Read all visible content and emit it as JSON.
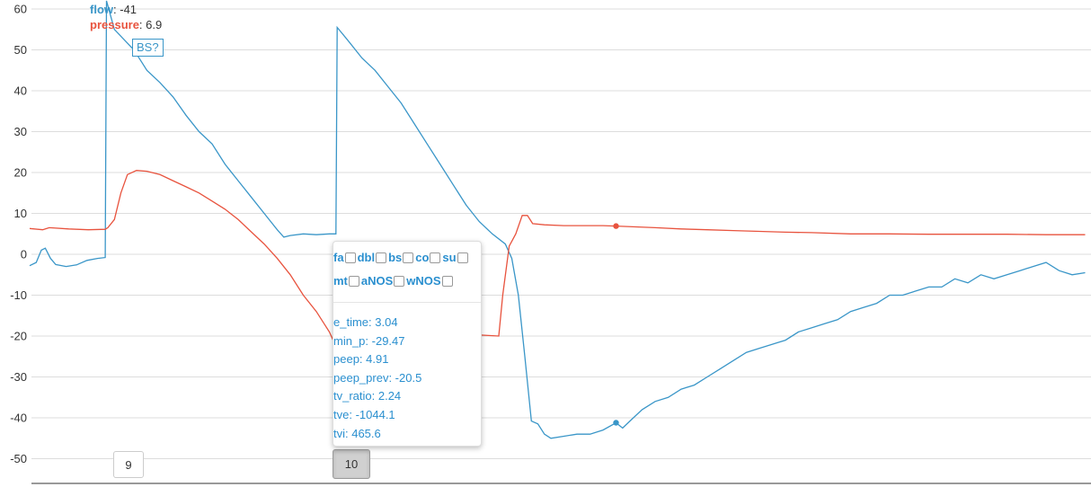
{
  "chart_data": {
    "type": "line",
    "ylim": [
      -55,
      60
    ],
    "yticks": [
      60,
      50,
      40,
      30,
      20,
      10,
      0,
      -10,
      -20,
      -30,
      -40,
      -50
    ],
    "grid": true,
    "series": [
      {
        "name": "flow",
        "color": "#3a96c8",
        "points": [
          [
            0.0,
            -2.8
          ],
          [
            0.05,
            -2
          ],
          [
            0.09,
            1
          ],
          [
            0.12,
            1.5
          ],
          [
            0.16,
            -1
          ],
          [
            0.2,
            -2.5
          ],
          [
            0.28,
            -3
          ],
          [
            0.36,
            -2.6
          ],
          [
            0.44,
            -1.5
          ],
          [
            0.52,
            -1
          ],
          [
            0.58,
            -0.8
          ],
          [
            0.59,
            62
          ],
          [
            0.65,
            55
          ],
          [
            0.74,
            52
          ],
          [
            0.8,
            50
          ],
          [
            0.86,
            47
          ],
          [
            0.9,
            45
          ],
          [
            1.0,
            42
          ],
          [
            1.1,
            38.5
          ],
          [
            1.2,
            34
          ],
          [
            1.3,
            30
          ],
          [
            1.4,
            27
          ],
          [
            1.5,
            22
          ],
          [
            1.6,
            18
          ],
          [
            1.7,
            14
          ],
          [
            1.8,
            10
          ],
          [
            1.9,
            6
          ],
          [
            1.95,
            4.2
          ],
          [
            2.0,
            4.6
          ],
          [
            2.1,
            5
          ],
          [
            2.2,
            4.8
          ],
          [
            2.3,
            5
          ],
          [
            2.35,
            5
          ],
          [
            2.36,
            55.5
          ],
          [
            2.45,
            52
          ],
          [
            2.55,
            48
          ],
          [
            2.65,
            45
          ],
          [
            2.75,
            41
          ],
          [
            2.85,
            37
          ],
          [
            2.95,
            32
          ],
          [
            3.05,
            27
          ],
          [
            3.15,
            22
          ],
          [
            3.25,
            17
          ],
          [
            3.35,
            12
          ],
          [
            3.45,
            8
          ],
          [
            3.55,
            5
          ],
          [
            3.65,
            2.5
          ],
          [
            3.7,
            -1
          ],
          [
            3.75,
            -10
          ],
          [
            3.8,
            -25
          ],
          [
            3.85,
            -40.8
          ],
          [
            3.9,
            -41.5
          ],
          [
            3.95,
            -44
          ],
          [
            4.0,
            -45
          ],
          [
            4.1,
            -44.5
          ],
          [
            4.2,
            -44
          ],
          [
            4.3,
            -44
          ],
          [
            4.4,
            -43
          ],
          [
            4.5,
            -41.2
          ],
          [
            4.55,
            -42.5
          ],
          [
            4.6,
            -41
          ],
          [
            4.7,
            -38
          ],
          [
            4.8,
            -36
          ],
          [
            4.9,
            -35
          ],
          [
            5.0,
            -33
          ],
          [
            5.1,
            -32
          ],
          [
            5.2,
            -30
          ],
          [
            5.3,
            -28
          ],
          [
            5.4,
            -26
          ],
          [
            5.5,
            -24
          ],
          [
            5.6,
            -23
          ],
          [
            5.7,
            -22
          ],
          [
            5.8,
            -21
          ],
          [
            5.9,
            -19
          ],
          [
            6.0,
            -18
          ],
          [
            6.1,
            -17
          ],
          [
            6.2,
            -16
          ],
          [
            6.3,
            -14
          ],
          [
            6.4,
            -13
          ],
          [
            6.5,
            -12
          ],
          [
            6.6,
            -10
          ],
          [
            6.7,
            -10
          ],
          [
            6.8,
            -9
          ],
          [
            6.9,
            -8
          ],
          [
            7.0,
            -8
          ],
          [
            7.1,
            -6
          ],
          [
            7.2,
            -7
          ],
          [
            7.3,
            -5
          ],
          [
            7.4,
            -6
          ],
          [
            7.5,
            -5
          ],
          [
            7.6,
            -4
          ],
          [
            7.7,
            -3
          ],
          [
            7.8,
            -2
          ],
          [
            7.9,
            -4
          ],
          [
            8.0,
            -5
          ],
          [
            8.1,
            -4.5
          ]
        ],
        "highlight": [
          4.5,
          -41.2
        ]
      },
      {
        "name": "pressure",
        "color": "#e8533e",
        "points": [
          [
            0.0,
            6.3
          ],
          [
            0.1,
            6
          ],
          [
            0.15,
            6.5
          ],
          [
            0.3,
            6.2
          ],
          [
            0.45,
            6
          ],
          [
            0.58,
            6.1
          ],
          [
            0.6,
            6.5
          ],
          [
            0.65,
            8.5
          ],
          [
            0.7,
            15
          ],
          [
            0.75,
            19.5
          ],
          [
            0.82,
            20.5
          ],
          [
            0.9,
            20.3
          ],
          [
            1.0,
            19.5
          ],
          [
            1.1,
            18
          ],
          [
            1.2,
            16.5
          ],
          [
            1.3,
            15
          ],
          [
            1.4,
            13
          ],
          [
            1.5,
            11
          ],
          [
            1.6,
            8.5
          ],
          [
            1.7,
            5.5
          ],
          [
            1.8,
            2.5
          ],
          [
            1.9,
            -1
          ],
          [
            2.0,
            -5
          ],
          [
            2.1,
            -10
          ],
          [
            2.2,
            -14
          ],
          [
            2.3,
            -19
          ],
          [
            2.35,
            -22.5
          ],
          [
            2.4,
            -21
          ],
          [
            2.45,
            -18
          ],
          [
            3.6,
            -20
          ],
          [
            3.63,
            -10
          ],
          [
            3.68,
            2
          ],
          [
            3.73,
            5
          ],
          [
            3.78,
            9.5
          ],
          [
            3.82,
            9.5
          ],
          [
            3.86,
            7.5
          ],
          [
            3.95,
            7.2
          ],
          [
            4.1,
            7
          ],
          [
            4.3,
            7
          ],
          [
            4.4,
            7
          ],
          [
            4.5,
            6.9
          ],
          [
            4.8,
            6.5
          ],
          [
            5.0,
            6.2
          ],
          [
            5.2,
            6
          ],
          [
            5.4,
            5.8
          ],
          [
            5.6,
            5.6
          ],
          [
            5.8,
            5.4
          ],
          [
            6.0,
            5.3
          ],
          [
            6.3,
            5
          ],
          [
            6.6,
            5
          ],
          [
            6.9,
            4.9
          ],
          [
            7.2,
            4.9
          ],
          [
            7.5,
            4.9
          ],
          [
            7.8,
            4.8
          ],
          [
            8.1,
            4.8
          ]
        ],
        "highlight": [
          4.5,
          6.9
        ]
      }
    ],
    "breath_markers": [
      "9",
      "10"
    ]
  },
  "legend": {
    "flow_key": "flow",
    "flow_value": "-41",
    "pressure_key": "pressure",
    "pressure_value": "6.9"
  },
  "annotation": {
    "bs_label": "BS?"
  },
  "breath_buttons": {
    "prev": "9",
    "current": "10"
  },
  "tooltip": {
    "tags_row1": [
      "fa",
      "dbl",
      "bs",
      "co",
      "su"
    ],
    "tags_row2": [
      "mt",
      "aNOS",
      "wNOS"
    ],
    "metrics": [
      "e_time: 3.04",
      "min_p: -29.47",
      "peep: 4.91",
      "peep_prev: -20.5",
      "tv_ratio: 2.24",
      "tve: -1044.1",
      "tvi: 465.6"
    ]
  }
}
